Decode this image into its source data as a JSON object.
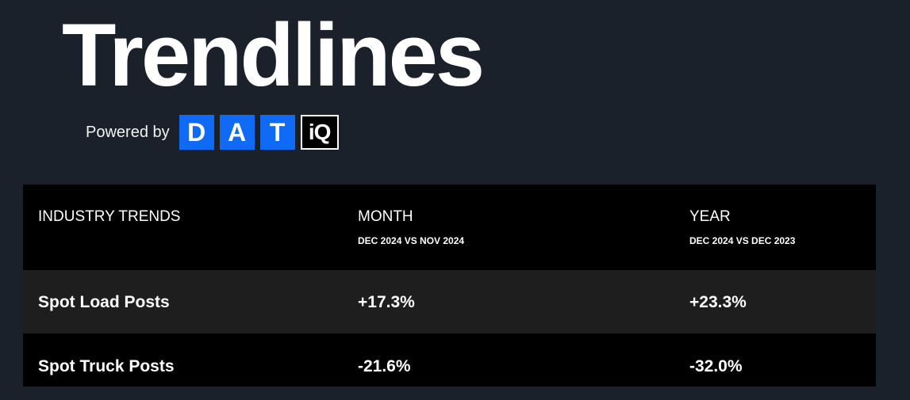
{
  "header": {
    "title": "Trendlines",
    "powered_by": "Powered by",
    "logo": {
      "letters": [
        "D",
        "A",
        "T"
      ],
      "suffix": "iQ",
      "brand_color": "#0f6af5"
    }
  },
  "table": {
    "columns": [
      {
        "label": "INDUSTRY TRENDS",
        "sub": ""
      },
      {
        "label": "MONTH",
        "sub": "DEC 2024 VS NOV 2024"
      },
      {
        "label": "YEAR",
        "sub": "DEC 2024 VS DEC 2023"
      }
    ],
    "rows": [
      {
        "name": "Spot Load Posts",
        "month": "+17.3%",
        "year": "+23.3%"
      },
      {
        "name": "Spot Truck Posts",
        "month": "-21.6%",
        "year": "-32.0%"
      }
    ]
  }
}
